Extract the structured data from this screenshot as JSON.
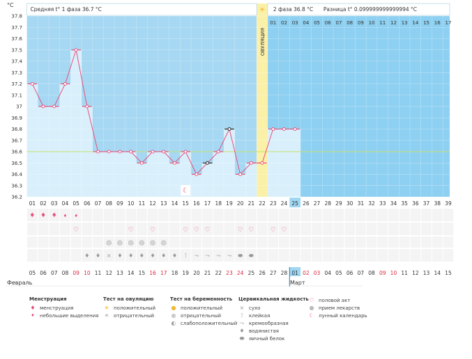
{
  "header": {
    "phase1_label": "Средняя t° 1 фаза 36.7 °C",
    "phase2_label": "2 фаза 36.8 °C",
    "diff_label": "Разница t° 0.099999999999994 °C",
    "ovulation_label": "ОВУЛЯЦИЯ",
    "unit_label": "°C"
  },
  "months": {
    "first": "Февраль",
    "second": "Март"
  },
  "chart_data": {
    "type": "line",
    "cycle_days": [
      "01",
      "02",
      "03",
      "04",
      "05",
      "06",
      "07",
      "08",
      "09",
      "10",
      "11",
      "12",
      "13",
      "14",
      "15",
      "16",
      "17",
      "18",
      "19",
      "20",
      "21",
      "22",
      "23",
      "24",
      "25",
      "26",
      "27",
      "28",
      "29",
      "30",
      "31",
      "32",
      "33",
      "34",
      "35",
      "36",
      "37",
      "38",
      "39"
    ],
    "top_days": [
      "01",
      "02",
      "03",
      "04",
      "05",
      "06",
      "07",
      "08",
      "09",
      "10",
      "11",
      "12",
      "13",
      "14",
      "15",
      "16",
      "17"
    ],
    "calendar_days": [
      "05",
      "06",
      "07",
      "08",
      "09",
      "10",
      "11",
      "12",
      "13",
      "14",
      "15",
      "16",
      "17",
      "18",
      "19",
      "20",
      "21",
      "22",
      "23",
      "24",
      "25",
      "26",
      "27",
      "28",
      "01",
      "02",
      "03",
      "04",
      "05",
      "06",
      "07",
      "08",
      "09",
      "10",
      "11",
      "12",
      "13",
      "14",
      "15"
    ],
    "weekend_days": [
      4,
      5,
      11,
      12,
      18,
      19,
      25,
      26,
      32,
      33
    ],
    "temperatures": [
      37.2,
      37.0,
      37.0,
      37.2,
      37.5,
      37.0,
      36.6,
      36.6,
      36.6,
      36.6,
      36.5,
      36.6,
      36.6,
      36.5,
      36.6,
      36.4,
      36.5,
      36.6,
      36.8,
      36.4,
      36.5,
      36.5,
      36.8,
      36.8,
      36.8
    ],
    "flagged_days": [
      17,
      19
    ],
    "y_ticks": [
      36.2,
      36.3,
      36.4,
      36.5,
      36.6,
      36.7,
      36.8,
      36.9,
      37.0,
      37.1,
      37.2,
      37.3,
      37.4,
      37.5,
      37.6,
      37.7,
      37.8
    ],
    "ylim": [
      36.2,
      37.8
    ],
    "coverline": 36.6,
    "ovulation_day": 22,
    "current_day": 25,
    "moon_day": 15,
    "menstruation": [
      {
        "day": 1,
        "type": "heavy"
      },
      {
        "day": 2,
        "type": "heavy"
      },
      {
        "day": 3,
        "type": "heavy"
      },
      {
        "day": 4,
        "type": "light"
      },
      {
        "day": 5,
        "type": "light"
      }
    ],
    "intercourse_days": [
      5,
      10,
      12,
      15,
      16,
      17,
      20,
      21,
      23,
      24
    ],
    "medication_days": [
      8,
      9,
      10,
      11,
      12,
      13
    ],
    "mucus": [
      {
        "day": 6,
        "type": "watery"
      },
      {
        "day": 7,
        "type": "watery"
      },
      {
        "day": 8,
        "type": "dry"
      },
      {
        "day": 9,
        "type": "watery"
      },
      {
        "day": 10,
        "type": "watery"
      },
      {
        "day": 11,
        "type": "watery"
      },
      {
        "day": 12,
        "type": "watery"
      },
      {
        "day": 13,
        "type": "watery"
      },
      {
        "day": 14,
        "type": "watery"
      },
      {
        "day": 15,
        "type": "sticky"
      },
      {
        "day": 16,
        "type": "creamy"
      },
      {
        "day": 17,
        "type": "creamy"
      },
      {
        "day": 18,
        "type": "creamy"
      },
      {
        "day": 19,
        "type": "creamy"
      },
      {
        "day": 20,
        "type": "eggwhite"
      },
      {
        "day": 21,
        "type": "eggwhite"
      }
    ],
    "colors": {
      "line": "#e8507a",
      "phase1_bg": "#a6d8f3",
      "phase2_bg": "#8ed0f1",
      "bar": "#d9f0fc",
      "ovulation": "#fbf0a8",
      "coverline": "#c8e06a",
      "current_day": "#9fd6f2"
    }
  },
  "legend": {
    "menstruation": {
      "title": "Менструация",
      "items": [
        {
          "icon": "drop-heavy-icon",
          "label": "менструация"
        },
        {
          "icon": "drop-light-icon",
          "label": "небольшие выделения"
        }
      ]
    },
    "ovulation_test": {
      "title": "Тест на овуляцию",
      "items": [
        {
          "icon": "sun-positive-icon",
          "label": "положительный"
        },
        {
          "icon": "sun-negative-icon",
          "label": "отрицательный"
        }
      ]
    },
    "pregnancy_test": {
      "title": "Тест на беременность",
      "items": [
        {
          "icon": "test-positive-icon",
          "label": "положительный"
        },
        {
          "icon": "test-negative-icon",
          "label": "отрицательный"
        },
        {
          "icon": "test-weak-icon",
          "label": "слабоположительный"
        }
      ]
    },
    "cervical_fluid": {
      "title": "Цервикальная жидкость",
      "items": [
        {
          "icon": "dry-icon",
          "label": "сухо"
        },
        {
          "icon": "sticky-icon",
          "label": "клейкая"
        },
        {
          "icon": "creamy-icon",
          "label": "кремообразная"
        },
        {
          "icon": "watery-icon",
          "label": "водянистая"
        },
        {
          "icon": "eggwhite-icon",
          "label": "яичный белок"
        }
      ]
    },
    "other": {
      "items": [
        {
          "icon": "heart-icon",
          "label": "половой акт"
        },
        {
          "icon": "pill-icon",
          "label": "прием лекарств"
        },
        {
          "icon": "moon-icon",
          "label": "лунный календарь"
        }
      ]
    }
  }
}
